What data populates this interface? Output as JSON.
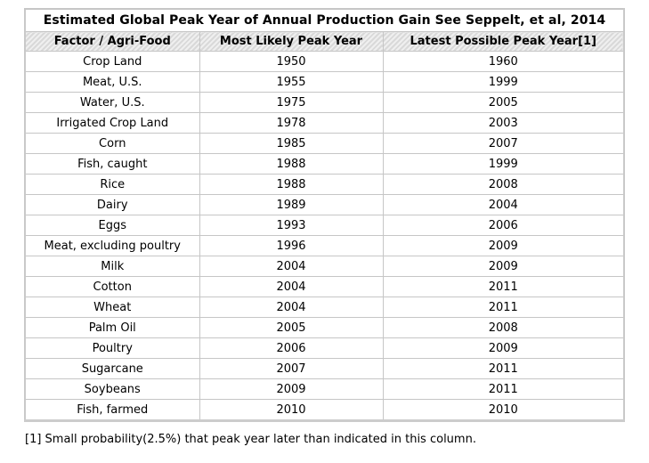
{
  "chart_data": {
    "type": "table",
    "title": "Estimated Global Peak Year of Annual Production Gain See Seppelt, et al, 2014",
    "columns": [
      "Factor / Agri-Food",
      "Most Likely Peak Year",
      "Latest Possible Peak Year[1]"
    ],
    "rows": [
      [
        "Crop Land",
        1950,
        1960
      ],
      [
        "Meat, U.S.",
        1955,
        1999
      ],
      [
        "Water, U.S.",
        1975,
        2005
      ],
      [
        "Irrigated Crop Land",
        1978,
        2003
      ],
      [
        "Corn",
        1985,
        2007
      ],
      [
        "Fish, caught",
        1988,
        1999
      ],
      [
        "Rice",
        1988,
        2008
      ],
      [
        "Dairy",
        1989,
        2004
      ],
      [
        "Eggs",
        1993,
        2006
      ],
      [
        "Meat, excluding poultry",
        1996,
        2009
      ],
      [
        "Milk",
        2004,
        2009
      ],
      [
        "Cotton",
        2004,
        2011
      ],
      [
        "Wheat",
        2004,
        2011
      ],
      [
        "Palm Oil",
        2005,
        2008
      ],
      [
        "Poultry",
        2006,
        2009
      ],
      [
        "Sugarcane",
        2007,
        2011
      ],
      [
        "Soybeans",
        2009,
        2011
      ],
      [
        "Fish, farmed",
        2010,
        2010
      ]
    ]
  },
  "footnote": "[1] Small probability(2.5%) that peak year later than indicated in this column.",
  "colors": {
    "border_outer": "#c9c9c9",
    "border_inner": "#c6c6c6",
    "hatch_light": "#efefef",
    "hatch_dark": "#d9d9d9",
    "text": "#000000",
    "background": "#ffffff"
  }
}
